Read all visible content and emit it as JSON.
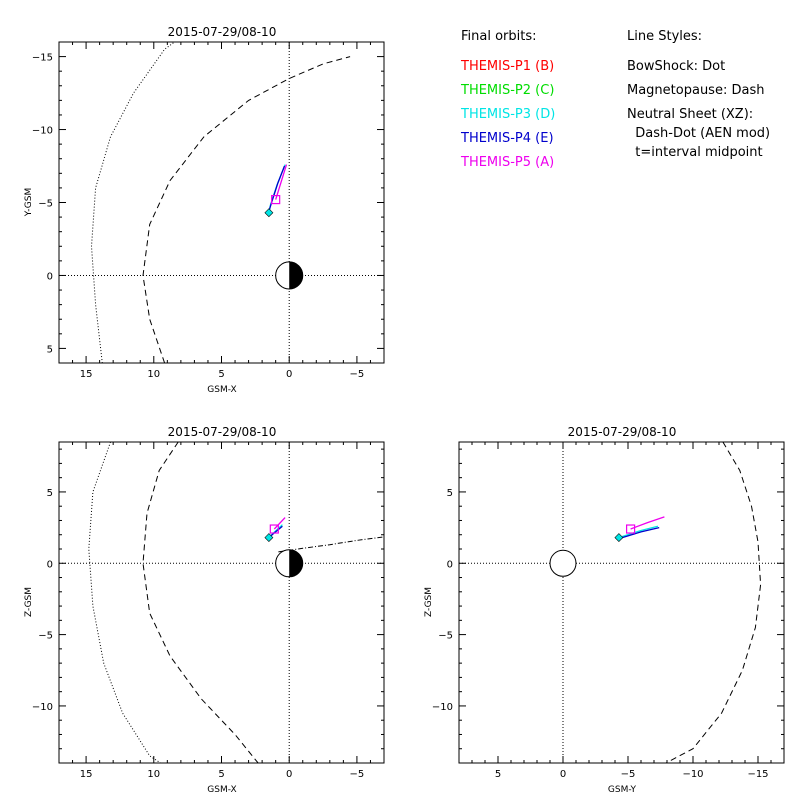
{
  "legend": {
    "orbits_title": "Final orbits:",
    "probes": [
      {
        "label": "THEMIS-P1 (B)",
        "color": "#ff0000"
      },
      {
        "label": "THEMIS-P2 (C)",
        "color": "#00dd00"
      },
      {
        "label": "THEMIS-P3 (D)",
        "color": "#00e5e5"
      },
      {
        "label": "THEMIS-P4 (E)",
        "color": "#0000cc"
      },
      {
        "label": "THEMIS-P5 (A)",
        "color": "#ee00ee"
      }
    ],
    "styles_title": "Line Styles:",
    "styles": [
      "BowShock: Dot",
      "Magnetopause: Dash",
      "Neutral Sheet (XZ):",
      "  Dash-Dot (AEN mod)",
      "  t=interval midpoint"
    ]
  },
  "chart_data": [
    {
      "type": "line",
      "id": "xy",
      "title": "2015-07-29/08-10",
      "xlabel": "GSM-X",
      "ylabel": "Y-GSM",
      "xlim": [
        17,
        -7
      ],
      "ylim": [
        6,
        -16
      ],
      "xticks": [
        15,
        10,
        5,
        0,
        -5
      ],
      "yticks": [
        -15,
        -10,
        -5,
        0,
        5
      ],
      "earth": {
        "x": 0,
        "y": 0,
        "r": 1,
        "day_side": "left"
      },
      "bow_shock": {
        "x": [
          13.8,
          14.3,
          14.6,
          14.3,
          13.2,
          11.5,
          9.2,
          7.0
        ],
        "y": [
          6,
          2,
          -2,
          -6,
          -9.5,
          -12.5,
          -15.5,
          -17
        ]
      },
      "magnetopause": {
        "x": [
          9.2,
          10.3,
          10.8,
          10.3,
          8.8,
          6.3,
          3.0,
          0.0,
          -2.5,
          -4.5
        ],
        "y": [
          6,
          3,
          0,
          -3.5,
          -6.5,
          -9.5,
          -12.0,
          -13.5,
          -14.5,
          -15.0
        ]
      },
      "orbits": [
        {
          "name": "THEMIS-P3 (D)",
          "color": "#00e5e5",
          "x": [
            0.3,
            0.9,
            1.4,
            1.5
          ],
          "y": [
            -7.6,
            -6.2,
            -4.8,
            -4.3
          ]
        },
        {
          "name": "THEMIS-P4 (E)",
          "color": "#0000cc",
          "x": [
            0.35,
            0.85,
            1.3,
            1.5
          ],
          "y": [
            -7.5,
            -6.3,
            -5.0,
            -4.4
          ]
        },
        {
          "name": "THEMIS-P5 (A)",
          "color": "#ee00ee",
          "x": [
            0.2,
            0.6,
            1.0
          ],
          "y": [
            -7.6,
            -6.4,
            -5.2
          ]
        }
      ],
      "markers": [
        {
          "type": "square",
          "x": 1.0,
          "y": -5.2,
          "color": "#ee00ee"
        },
        {
          "type": "diamond",
          "x": 1.5,
          "y": -4.3,
          "color": "#00e5e5"
        }
      ]
    },
    {
      "type": "line",
      "id": "xz",
      "title": "2015-07-29/08-10",
      "xlabel": "GSM-X",
      "ylabel": "Z-GSM",
      "xlim": [
        17,
        -7
      ],
      "ylim": [
        -14,
        8.5
      ],
      "xticks": [
        15,
        10,
        5,
        0,
        -5
      ],
      "yticks": [
        5,
        0,
        -5,
        -10
      ],
      "earth": {
        "x": 0,
        "y": 0,
        "r": 1,
        "day_side": "left"
      },
      "bow_shock": {
        "x": [
          13.2,
          14.5,
          14.8,
          14.5,
          13.7,
          12.3,
          10.3,
          9.5
        ],
        "y": [
          8.5,
          5,
          1,
          -3,
          -7,
          -10.5,
          -13.5,
          -14
        ]
      },
      "magnetopause": {
        "x": [
          8.2,
          9.6,
          10.5,
          10.8,
          10.3,
          8.8,
          6.5,
          4.0,
          2.3
        ],
        "y": [
          8.5,
          6.5,
          3.5,
          0,
          -3.5,
          -6.5,
          -9.5,
          -12.0,
          -14
        ]
      },
      "neutral_sheet": {
        "x": [
          0.8,
          -1,
          -3,
          -5,
          -7
        ],
        "y": [
          0.8,
          1.05,
          1.3,
          1.6,
          1.85
        ]
      },
      "orbits": [
        {
          "name": "THEMIS-P3 (D)",
          "color": "#00e5e5",
          "x": [
            0.5,
            1.2,
            1.5
          ],
          "y": [
            2.7,
            2.1,
            1.8
          ]
        },
        {
          "name": "THEMIS-P4 (E)",
          "color": "#0000cc",
          "x": [
            0.5,
            1.2,
            1.55
          ],
          "y": [
            2.6,
            2.05,
            1.75
          ]
        },
        {
          "name": "THEMIS-P5 (A)",
          "color": "#ee00ee",
          "x": [
            0.3,
            1.1
          ],
          "y": [
            3.2,
            2.4
          ]
        }
      ],
      "markers": [
        {
          "type": "square",
          "x": 1.1,
          "y": 2.4,
          "color": "#ee00ee"
        },
        {
          "type": "diamond",
          "x": 1.5,
          "y": 1.8,
          "color": "#00e5e5"
        }
      ]
    },
    {
      "type": "line",
      "id": "yz",
      "title": "2015-07-29/08-10",
      "xlabel": "GSM-Y",
      "ylabel": "Z-GSM",
      "xlim": [
        8,
        -17
      ],
      "ylim": [
        -14,
        8.5
      ],
      "xticks": [
        5,
        0,
        -5,
        -10,
        -15
      ],
      "yticks": [
        5,
        0,
        -5,
        -10
      ],
      "earth": {
        "x": 0,
        "y": 0,
        "r": 1,
        "day_side": "none"
      },
      "magnetopause": {
        "x": [
          -12.3,
          -13.6,
          -14.5,
          -15.0,
          -15.2,
          -14.8,
          -13.8,
          -12.2,
          -10.0,
          -7.5
        ],
        "y": [
          8.5,
          6.5,
          4.0,
          1.5,
          -1.5,
          -4.5,
          -7.5,
          -10.5,
          -13.0,
          -14.2
        ]
      },
      "orbits": [
        {
          "name": "THEMIS-P3 (D)",
          "color": "#00e5e5",
          "x": [
            -4.3,
            -6.0,
            -7.3
          ],
          "y": [
            1.8,
            2.3,
            2.6
          ]
        },
        {
          "name": "THEMIS-P4 (E)",
          "color": "#0000cc",
          "x": [
            -4.4,
            -6.0,
            -7.4
          ],
          "y": [
            1.75,
            2.2,
            2.5
          ]
        },
        {
          "name": "THEMIS-P5 (A)",
          "color": "#ee00ee",
          "x": [
            -5.2,
            -6.5,
            -7.8
          ],
          "y": [
            2.4,
            2.85,
            3.25
          ]
        }
      ],
      "markers": [
        {
          "type": "square",
          "x": -5.2,
          "y": 2.4,
          "color": "#ee00ee"
        },
        {
          "type": "diamond",
          "x": -4.3,
          "y": 1.8,
          "color": "#00e5e5"
        }
      ]
    }
  ]
}
